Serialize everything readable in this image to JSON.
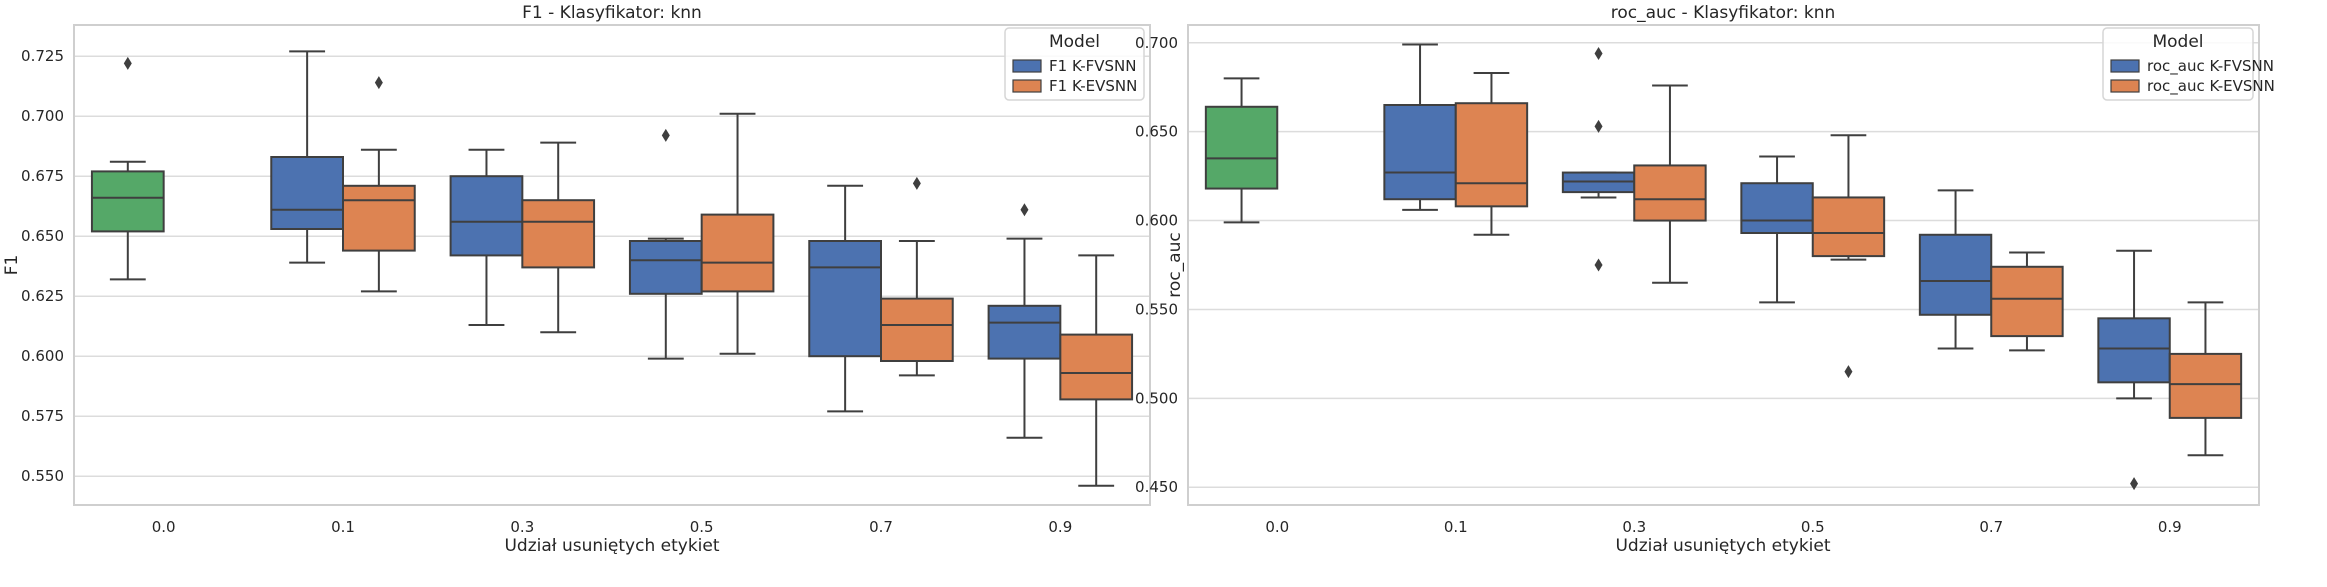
{
  "chart_data": [
    {
      "type": "box",
      "title": "F1 - Klasyfikator: knn",
      "xlabel": "Udział usuniętych etykiet",
      "ylabel": "F1",
      "ylim": [
        0.538,
        0.738
      ],
      "yticks": [
        0.55,
        0.575,
        0.6,
        0.625,
        0.65,
        0.675,
        0.7,
        0.725
      ],
      "categories": [
        "0.0",
        "0.1",
        "0.3",
        "0.5",
        "0.7",
        "0.9"
      ],
      "grid": true,
      "legend": {
        "title": "Model",
        "position": "top-right",
        "entries": [
          "F1 K-FVSNN",
          "F1 K-EVSNN"
        ]
      },
      "colors": {
        "K-FVSNN": "#4c72b0",
        "K-EVSNN": "#dd8452",
        "baseline": "#55a868"
      },
      "series": [
        {
          "name": "F1 K-FVSNN",
          "boxes": [
            {
              "category": "0.0",
              "baseline": true,
              "whislo": 0.632,
              "q1": 0.652,
              "med": 0.666,
              "q3": 0.677,
              "whishi": 0.681,
              "fliers": [
                0.722
              ]
            },
            {
              "category": "0.1",
              "whislo": 0.639,
              "q1": 0.653,
              "med": 0.661,
              "q3": 0.683,
              "whishi": 0.727,
              "fliers": []
            },
            {
              "category": "0.3",
              "whislo": 0.613,
              "q1": 0.642,
              "med": 0.656,
              "q3": 0.675,
              "whishi": 0.686,
              "fliers": []
            },
            {
              "category": "0.5",
              "whislo": 0.599,
              "q1": 0.626,
              "med": 0.64,
              "q3": 0.648,
              "whishi": 0.649,
              "fliers": [
                0.692
              ]
            },
            {
              "category": "0.7",
              "whislo": 0.577,
              "q1": 0.6,
              "med": 0.637,
              "q3": 0.648,
              "whishi": 0.671,
              "fliers": []
            },
            {
              "category": "0.9",
              "whislo": 0.566,
              "q1": 0.599,
              "med": 0.614,
              "q3": 0.621,
              "whishi": 0.649,
              "fliers": [
                0.661
              ]
            }
          ]
        },
        {
          "name": "F1 K-EVSNN",
          "boxes": [
            {
              "category": "0.1",
              "whislo": 0.627,
              "q1": 0.644,
              "med": 0.665,
              "q3": 0.671,
              "whishi": 0.686,
              "fliers": [
                0.714
              ]
            },
            {
              "category": "0.3",
              "whislo": 0.61,
              "q1": 0.637,
              "med": 0.656,
              "q3": 0.665,
              "whishi": 0.689,
              "fliers": []
            },
            {
              "category": "0.5",
              "whislo": 0.601,
              "q1": 0.627,
              "med": 0.639,
              "q3": 0.659,
              "whishi": 0.701,
              "fliers": []
            },
            {
              "category": "0.7",
              "whislo": 0.592,
              "q1": 0.598,
              "med": 0.613,
              "q3": 0.624,
              "whishi": 0.648,
              "fliers": [
                0.672
              ]
            },
            {
              "category": "0.9",
              "whislo": 0.546,
              "q1": 0.582,
              "med": 0.593,
              "q3": 0.609,
              "whishi": 0.642,
              "fliers": []
            }
          ]
        }
      ]
    },
    {
      "type": "box",
      "title": "roc_auc - Klasyfikator: knn",
      "xlabel": "Udział usuniętych etykiet",
      "ylabel": "roc_auc",
      "ylim": [
        0.44,
        0.71
      ],
      "yticks": [
        0.45,
        0.5,
        0.55,
        0.6,
        0.65,
        0.7
      ],
      "categories": [
        "0.0",
        "0.1",
        "0.3",
        "0.5",
        "0.7",
        "0.9"
      ],
      "grid": true,
      "legend": {
        "title": "Model",
        "position": "top-right",
        "entries": [
          "roc_auc K-FVSNN",
          "roc_auc K-EVSNN"
        ]
      },
      "colors": {
        "K-FVSNN": "#4c72b0",
        "K-EVSNN": "#dd8452",
        "baseline": "#55a868"
      },
      "series": [
        {
          "name": "roc_auc K-FVSNN",
          "boxes": [
            {
              "category": "0.0",
              "baseline": true,
              "whislo": 0.599,
              "q1": 0.618,
              "med": 0.635,
              "q3": 0.664,
              "whishi": 0.68,
              "fliers": []
            },
            {
              "category": "0.1",
              "whislo": 0.606,
              "q1": 0.612,
              "med": 0.627,
              "q3": 0.665,
              "whishi": 0.699,
              "fliers": []
            },
            {
              "category": "0.3",
              "whislo": 0.613,
              "q1": 0.616,
              "med": 0.622,
              "q3": 0.627,
              "whishi": 0.627,
              "fliers": [
                0.575,
                0.653,
                0.694
              ]
            },
            {
              "category": "0.5",
              "whislo": 0.554,
              "q1": 0.593,
              "med": 0.6,
              "q3": 0.621,
              "whishi": 0.636,
              "fliers": []
            },
            {
              "category": "0.7",
              "whislo": 0.528,
              "q1": 0.547,
              "med": 0.566,
              "q3": 0.592,
              "whishi": 0.617,
              "fliers": []
            },
            {
              "category": "0.9",
              "whislo": 0.5,
              "q1": 0.509,
              "med": 0.528,
              "q3": 0.545,
              "whishi": 0.583,
              "fliers": [
                0.452
              ]
            }
          ]
        },
        {
          "name": "roc_auc K-EVSNN",
          "boxes": [
            {
              "category": "0.1",
              "whislo": 0.592,
              "q1": 0.608,
              "med": 0.621,
              "q3": 0.666,
              "whishi": 0.683,
              "fliers": []
            },
            {
              "category": "0.3",
              "whislo": 0.565,
              "q1": 0.6,
              "med": 0.612,
              "q3": 0.631,
              "whishi": 0.676,
              "fliers": []
            },
            {
              "category": "0.5",
              "whislo": 0.578,
              "q1": 0.58,
              "med": 0.593,
              "q3": 0.613,
              "whishi": 0.648,
              "fliers": [
                0.515
              ]
            },
            {
              "category": "0.7",
              "whislo": 0.527,
              "q1": 0.535,
              "med": 0.556,
              "q3": 0.574,
              "whishi": 0.582,
              "fliers": []
            },
            {
              "category": "0.9",
              "whislo": 0.468,
              "q1": 0.489,
              "med": 0.508,
              "q3": 0.525,
              "whishi": 0.554,
              "fliers": []
            }
          ]
        }
      ]
    }
  ]
}
